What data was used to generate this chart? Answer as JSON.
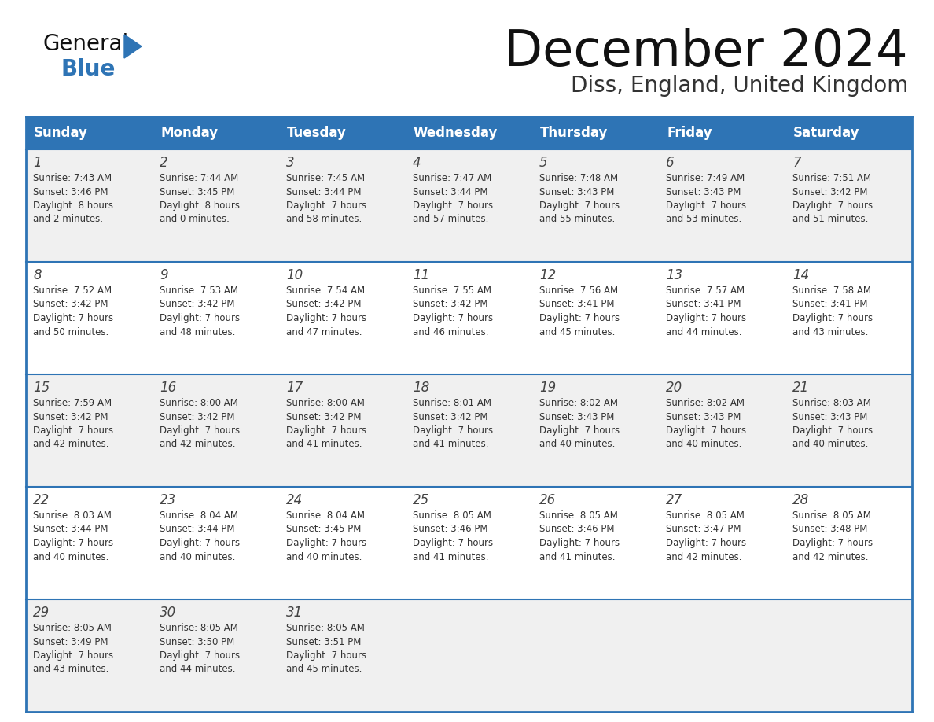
{
  "title": "December 2024",
  "subtitle": "Diss, England, United Kingdom",
  "days_of_week": [
    "Sunday",
    "Monday",
    "Tuesday",
    "Wednesday",
    "Thursday",
    "Friday",
    "Saturday"
  ],
  "header_bg": "#2E74B5",
  "header_text": "#FFFFFF",
  "row_bg_odd": "#F0F0F0",
  "row_bg_even": "#FFFFFF",
  "day_num_color": "#444444",
  "text_color": "#333333",
  "border_color": "#2E74B5",
  "title_color": "#111111",
  "subtitle_color": "#333333",
  "logo_general_color": "#111111",
  "logo_blue_color": "#2E74B5",
  "cells": [
    {
      "day": 1,
      "col": 0,
      "row": 0,
      "sunrise": "7:43 AM",
      "sunset": "3:46 PM",
      "daylight_h": "8 hours",
      "daylight_m": "and 2 minutes."
    },
    {
      "day": 2,
      "col": 1,
      "row": 0,
      "sunrise": "7:44 AM",
      "sunset": "3:45 PM",
      "daylight_h": "8 hours",
      "daylight_m": "and 0 minutes."
    },
    {
      "day": 3,
      "col": 2,
      "row": 0,
      "sunrise": "7:45 AM",
      "sunset": "3:44 PM",
      "daylight_h": "7 hours",
      "daylight_m": "and 58 minutes."
    },
    {
      "day": 4,
      "col": 3,
      "row": 0,
      "sunrise": "7:47 AM",
      "sunset": "3:44 PM",
      "daylight_h": "7 hours",
      "daylight_m": "and 57 minutes."
    },
    {
      "day": 5,
      "col": 4,
      "row": 0,
      "sunrise": "7:48 AM",
      "sunset": "3:43 PM",
      "daylight_h": "7 hours",
      "daylight_m": "and 55 minutes."
    },
    {
      "day": 6,
      "col": 5,
      "row": 0,
      "sunrise": "7:49 AM",
      "sunset": "3:43 PM",
      "daylight_h": "7 hours",
      "daylight_m": "and 53 minutes."
    },
    {
      "day": 7,
      "col": 6,
      "row": 0,
      "sunrise": "7:51 AM",
      "sunset": "3:42 PM",
      "daylight_h": "7 hours",
      "daylight_m": "and 51 minutes."
    },
    {
      "day": 8,
      "col": 0,
      "row": 1,
      "sunrise": "7:52 AM",
      "sunset": "3:42 PM",
      "daylight_h": "7 hours",
      "daylight_m": "and 50 minutes."
    },
    {
      "day": 9,
      "col": 1,
      "row": 1,
      "sunrise": "7:53 AM",
      "sunset": "3:42 PM",
      "daylight_h": "7 hours",
      "daylight_m": "and 48 minutes."
    },
    {
      "day": 10,
      "col": 2,
      "row": 1,
      "sunrise": "7:54 AM",
      "sunset": "3:42 PM",
      "daylight_h": "7 hours",
      "daylight_m": "and 47 minutes."
    },
    {
      "day": 11,
      "col": 3,
      "row": 1,
      "sunrise": "7:55 AM",
      "sunset": "3:42 PM",
      "daylight_h": "7 hours",
      "daylight_m": "and 46 minutes."
    },
    {
      "day": 12,
      "col": 4,
      "row": 1,
      "sunrise": "7:56 AM",
      "sunset": "3:41 PM",
      "daylight_h": "7 hours",
      "daylight_m": "and 45 minutes."
    },
    {
      "day": 13,
      "col": 5,
      "row": 1,
      "sunrise": "7:57 AM",
      "sunset": "3:41 PM",
      "daylight_h": "7 hours",
      "daylight_m": "and 44 minutes."
    },
    {
      "day": 14,
      "col": 6,
      "row": 1,
      "sunrise": "7:58 AM",
      "sunset": "3:41 PM",
      "daylight_h": "7 hours",
      "daylight_m": "and 43 minutes."
    },
    {
      "day": 15,
      "col": 0,
      "row": 2,
      "sunrise": "7:59 AM",
      "sunset": "3:42 PM",
      "daylight_h": "7 hours",
      "daylight_m": "and 42 minutes."
    },
    {
      "day": 16,
      "col": 1,
      "row": 2,
      "sunrise": "8:00 AM",
      "sunset": "3:42 PM",
      "daylight_h": "7 hours",
      "daylight_m": "and 42 minutes."
    },
    {
      "day": 17,
      "col": 2,
      "row": 2,
      "sunrise": "8:00 AM",
      "sunset": "3:42 PM",
      "daylight_h": "7 hours",
      "daylight_m": "and 41 minutes."
    },
    {
      "day": 18,
      "col": 3,
      "row": 2,
      "sunrise": "8:01 AM",
      "sunset": "3:42 PM",
      "daylight_h": "7 hours",
      "daylight_m": "and 41 minutes."
    },
    {
      "day": 19,
      "col": 4,
      "row": 2,
      "sunrise": "8:02 AM",
      "sunset": "3:43 PM",
      "daylight_h": "7 hours",
      "daylight_m": "and 40 minutes."
    },
    {
      "day": 20,
      "col": 5,
      "row": 2,
      "sunrise": "8:02 AM",
      "sunset": "3:43 PM",
      "daylight_h": "7 hours",
      "daylight_m": "and 40 minutes."
    },
    {
      "day": 21,
      "col": 6,
      "row": 2,
      "sunrise": "8:03 AM",
      "sunset": "3:43 PM",
      "daylight_h": "7 hours",
      "daylight_m": "and 40 minutes."
    },
    {
      "day": 22,
      "col": 0,
      "row": 3,
      "sunrise": "8:03 AM",
      "sunset": "3:44 PM",
      "daylight_h": "7 hours",
      "daylight_m": "and 40 minutes."
    },
    {
      "day": 23,
      "col": 1,
      "row": 3,
      "sunrise": "8:04 AM",
      "sunset": "3:44 PM",
      "daylight_h": "7 hours",
      "daylight_m": "and 40 minutes."
    },
    {
      "day": 24,
      "col": 2,
      "row": 3,
      "sunrise": "8:04 AM",
      "sunset": "3:45 PM",
      "daylight_h": "7 hours",
      "daylight_m": "and 40 minutes."
    },
    {
      "day": 25,
      "col": 3,
      "row": 3,
      "sunrise": "8:05 AM",
      "sunset": "3:46 PM",
      "daylight_h": "7 hours",
      "daylight_m": "and 41 minutes."
    },
    {
      "day": 26,
      "col": 4,
      "row": 3,
      "sunrise": "8:05 AM",
      "sunset": "3:46 PM",
      "daylight_h": "7 hours",
      "daylight_m": "and 41 minutes."
    },
    {
      "day": 27,
      "col": 5,
      "row": 3,
      "sunrise": "8:05 AM",
      "sunset": "3:47 PM",
      "daylight_h": "7 hours",
      "daylight_m": "and 42 minutes."
    },
    {
      "day": 28,
      "col": 6,
      "row": 3,
      "sunrise": "8:05 AM",
      "sunset": "3:48 PM",
      "daylight_h": "7 hours",
      "daylight_m": "and 42 minutes."
    },
    {
      "day": 29,
      "col": 0,
      "row": 4,
      "sunrise": "8:05 AM",
      "sunset": "3:49 PM",
      "daylight_h": "7 hours",
      "daylight_m": "and 43 minutes."
    },
    {
      "day": 30,
      "col": 1,
      "row": 4,
      "sunrise": "8:05 AM",
      "sunset": "3:50 PM",
      "daylight_h": "7 hours",
      "daylight_m": "and 44 minutes."
    },
    {
      "day": 31,
      "col": 2,
      "row": 4,
      "sunrise": "8:05 AM",
      "sunset": "3:51 PM",
      "daylight_h": "7 hours",
      "daylight_m": "and 45 minutes."
    }
  ]
}
